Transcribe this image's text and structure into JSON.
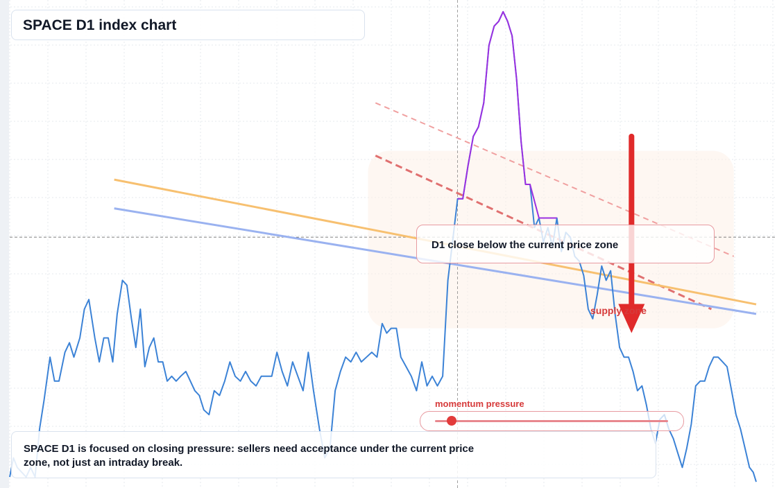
{
  "title": "SPACE D1 index chart",
  "zone_label": "D1 close below the current price zone",
  "supply_label": "supply zone",
  "momentum": {
    "label": "momentum pressure",
    "level": 0.07
  },
  "note": "SPACE D1 is focused on closing pressure: sellers need acceptance under the current price zone, not just an intraday break.",
  "colors": {
    "price_line": "#3b82d6",
    "price_spike": "#9b30e0",
    "orange_ma": "#f7c070",
    "blue_ma": "#9ab2f0",
    "resistance": "#e07070",
    "arrow": "#e02a2a",
    "zone_fill": "#fdf0e8"
  },
  "chart_data": {
    "type": "line",
    "title": "SPACE D1 index chart",
    "xlabel": "",
    "ylabel": "",
    "ylim": [
      0,
      100
    ],
    "xlim": [
      0,
      100
    ],
    "grid": true,
    "series": [
      {
        "values": [
          [
            0,
            2
          ],
          [
            0.5,
            6
          ],
          [
            1,
            4
          ],
          [
            1.6,
            3
          ],
          [
            2.2,
            2
          ],
          [
            2.8,
            4
          ],
          [
            3.4,
            2
          ],
          [
            4,
            12
          ],
          [
            4.6,
            18
          ],
          [
            5.4,
            27
          ],
          [
            6,
            22
          ],
          [
            6.6,
            22
          ],
          [
            7.4,
            28
          ],
          [
            8,
            30
          ],
          [
            8.6,
            27
          ],
          [
            9.4,
            31
          ],
          [
            10,
            37
          ],
          [
            10.6,
            39
          ],
          [
            11.4,
            31
          ],
          [
            12,
            26
          ],
          [
            12.6,
            31
          ],
          [
            13.2,
            31
          ],
          [
            13.8,
            26
          ],
          [
            14.4,
            36
          ],
          [
            15.1,
            43
          ],
          [
            15.7,
            42
          ],
          [
            16.3,
            35
          ],
          [
            16.9,
            29
          ],
          [
            17.5,
            37
          ],
          [
            18.1,
            25
          ],
          [
            18.7,
            29
          ],
          [
            19.3,
            31
          ],
          [
            19.9,
            26
          ],
          [
            20.5,
            26
          ],
          [
            21.1,
            22
          ],
          [
            21.7,
            23
          ],
          [
            22.3,
            22
          ],
          [
            22.9,
            23
          ],
          [
            23.6,
            24
          ],
          [
            24.2,
            22
          ],
          [
            24.8,
            20
          ],
          [
            25.4,
            19
          ],
          [
            26,
            16
          ],
          [
            26.7,
            15
          ],
          [
            27.4,
            20
          ],
          [
            28.1,
            19
          ],
          [
            28.8,
            22
          ],
          [
            29.5,
            26
          ],
          [
            30.2,
            23
          ],
          [
            30.9,
            22
          ],
          [
            31.6,
            24
          ],
          [
            32.3,
            22
          ],
          [
            33,
            21
          ],
          [
            33.7,
            23
          ],
          [
            34.4,
            23
          ],
          [
            35.1,
            23
          ],
          [
            35.8,
            28
          ],
          [
            36.5,
            24
          ],
          [
            37.2,
            21
          ],
          [
            37.9,
            26
          ],
          [
            38.6,
            23
          ],
          [
            39.3,
            20
          ],
          [
            40,
            28
          ],
          [
            40.7,
            20
          ],
          [
            41.5,
            12
          ],
          [
            42.2,
            6
          ],
          [
            42.9,
            8
          ],
          [
            43.6,
            20
          ],
          [
            44.3,
            24
          ],
          [
            45,
            27
          ],
          [
            45.7,
            26
          ],
          [
            46.4,
            28
          ],
          [
            47.1,
            26
          ],
          [
            47.8,
            27
          ],
          [
            48.5,
            28
          ],
          [
            49.2,
            27
          ],
          [
            49.9,
            34
          ],
          [
            50.5,
            32
          ],
          [
            51.1,
            33
          ],
          [
            51.8,
            33
          ],
          [
            52.4,
            27
          ],
          [
            53.1,
            25
          ],
          [
            53.8,
            23
          ],
          [
            54.5,
            20
          ],
          [
            55.2,
            26
          ],
          [
            55.9,
            21
          ],
          [
            56.6,
            23
          ],
          [
            57.3,
            21
          ],
          [
            58,
            23
          ],
          [
            58.7,
            43
          ],
          [
            59.4,
            52
          ],
          [
            60,
            60
          ],
          [
            60.7,
            60
          ],
          [
            61.4,
            67
          ],
          [
            62.1,
            73
          ],
          [
            62.8,
            75
          ],
          [
            63.5,
            80
          ],
          [
            64.2,
            92
          ],
          [
            64.9,
            96
          ],
          [
            65.5,
            97
          ],
          [
            66.1,
            99
          ],
          [
            66.7,
            97
          ],
          [
            67.3,
            94
          ],
          [
            67.9,
            85
          ],
          [
            68.5,
            72
          ],
          [
            69.1,
            63
          ],
          [
            69.7,
            63
          ],
          [
            70.3,
            54
          ],
          [
            70.9,
            56
          ],
          [
            71.5,
            51
          ],
          [
            72.1,
            54
          ],
          [
            72.7,
            50
          ],
          [
            73.3,
            56
          ],
          [
            73.9,
            49
          ],
          [
            74.5,
            53
          ],
          [
            75.1,
            52
          ],
          [
            75.7,
            48
          ],
          [
            76.3,
            47
          ],
          [
            76.9,
            44
          ],
          [
            77.5,
            37
          ],
          [
            78.1,
            35
          ],
          [
            78.7,
            40
          ],
          [
            79.3,
            46
          ],
          [
            79.9,
            43
          ],
          [
            80.5,
            45
          ],
          [
            81.1,
            36
          ],
          [
            81.7,
            29
          ],
          [
            82.3,
            27
          ],
          [
            82.9,
            27
          ],
          [
            83.5,
            24
          ],
          [
            84.1,
            20
          ],
          [
            84.7,
            21
          ],
          [
            85.3,
            17
          ],
          [
            85.9,
            12
          ],
          [
            86.5,
            9
          ],
          [
            87.1,
            14
          ],
          [
            87.7,
            15
          ],
          [
            88.3,
            12
          ],
          [
            88.9,
            10
          ],
          [
            89.5,
            7
          ],
          [
            90.1,
            4
          ],
          [
            90.7,
            8
          ],
          [
            91.3,
            13
          ],
          [
            91.9,
            21
          ],
          [
            92.5,
            22
          ],
          [
            93.1,
            22
          ],
          [
            93.7,
            25
          ],
          [
            94.3,
            27
          ],
          [
            94.9,
            27
          ],
          [
            95.5,
            26
          ],
          [
            96.1,
            25
          ],
          [
            96.7,
            20
          ],
          [
            97.3,
            15
          ],
          [
            97.9,
            12
          ],
          [
            98.5,
            8
          ],
          [
            99.1,
            4
          ],
          [
            99.6,
            3
          ],
          [
            100,
            1
          ]
        ]
      },
      {
        "values": [
          [
            14,
            64
          ],
          [
            100,
            38
          ]
        ]
      },
      {
        "values": [
          [
            14,
            58
          ],
          [
            100,
            36
          ]
        ]
      }
    ],
    "annotations": [
      {
        "type": "resistance-line",
        "style": "dashed",
        "from": [
          49,
          69
        ],
        "to": [
          94,
          37
        ]
      },
      {
        "type": "resistance-line",
        "style": "dashed-light",
        "from": [
          49,
          80
        ],
        "to": [
          97,
          48
        ]
      },
      {
        "type": "zone",
        "from": [
          48,
          33
        ],
        "to": [
          97,
          70
        ]
      },
      {
        "type": "reference-line",
        "style": "dashed",
        "axis": "y",
        "value": 52
      },
      {
        "type": "reference-line",
        "style": "dashed",
        "axis": "x",
        "value": 60
      },
      {
        "type": "arrow",
        "direction": "down",
        "from": [
          83.3,
          73
        ],
        "to": [
          83.3,
          32
        ]
      }
    ]
  }
}
